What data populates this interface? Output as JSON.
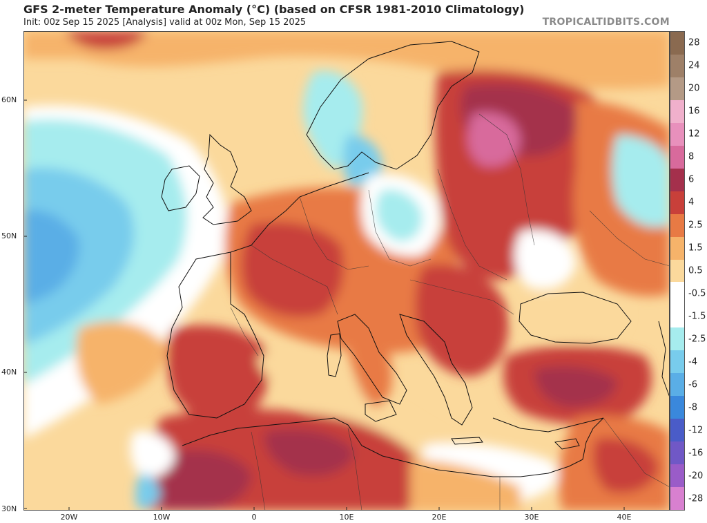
{
  "header": {
    "title": "GFS 2-meter Temperature Anomaly (°C) (based on CFSR 1981-2010 Climatology)",
    "subtitle": "Init: 00z Sep 15 2025   [Analysis]   valid at 00z Mon, Sep 15 2025",
    "brand": "TROPICALTIDBITS.COM"
  },
  "axes": {
    "lat_labels": [
      "60N",
      "50N",
      "40N",
      "30N"
    ],
    "lon_labels": [
      "20W",
      "10W",
      "0",
      "10E",
      "20E",
      "30E",
      "40E"
    ]
  },
  "colorbar": {
    "labels": [
      "28",
      "24",
      "20",
      "16",
      "12",
      "8",
      "6",
      "4",
      "2.5",
      "1.5",
      "0.5",
      "-0.5",
      "-1.5",
      "-2.5",
      "-4",
      "-6",
      "-8",
      "-12",
      "-16",
      "-20",
      "-28"
    ],
    "colors": [
      "#8a6a50",
      "#9e8068",
      "#b49a86",
      "#f0b0cc",
      "#e890bc",
      "#d86a9c",
      "#a4304c",
      "#c8403a",
      "#e87a44",
      "#f6b36a",
      "#fbd99c",
      "#ffffff",
      "#ffffff",
      "#a6ecee",
      "#78ccec",
      "#5aaee6",
      "#3a88dc",
      "#4a5cc8",
      "#7058c6",
      "#9a5cc8",
      "#d880d0"
    ]
  },
  "map": {
    "region": "Europe, North Africa, Middle East",
    "palette": {
      "ocean_cool": "#8fdaf0",
      "ocean_cold": "#5aaee6",
      "neutral": "#ffffff",
      "warm_light": "#fbd99c",
      "warm": "#f6b36a",
      "hot": "#e87a44",
      "very_hot": "#c8403a",
      "extreme": "#a4304c"
    }
  }
}
